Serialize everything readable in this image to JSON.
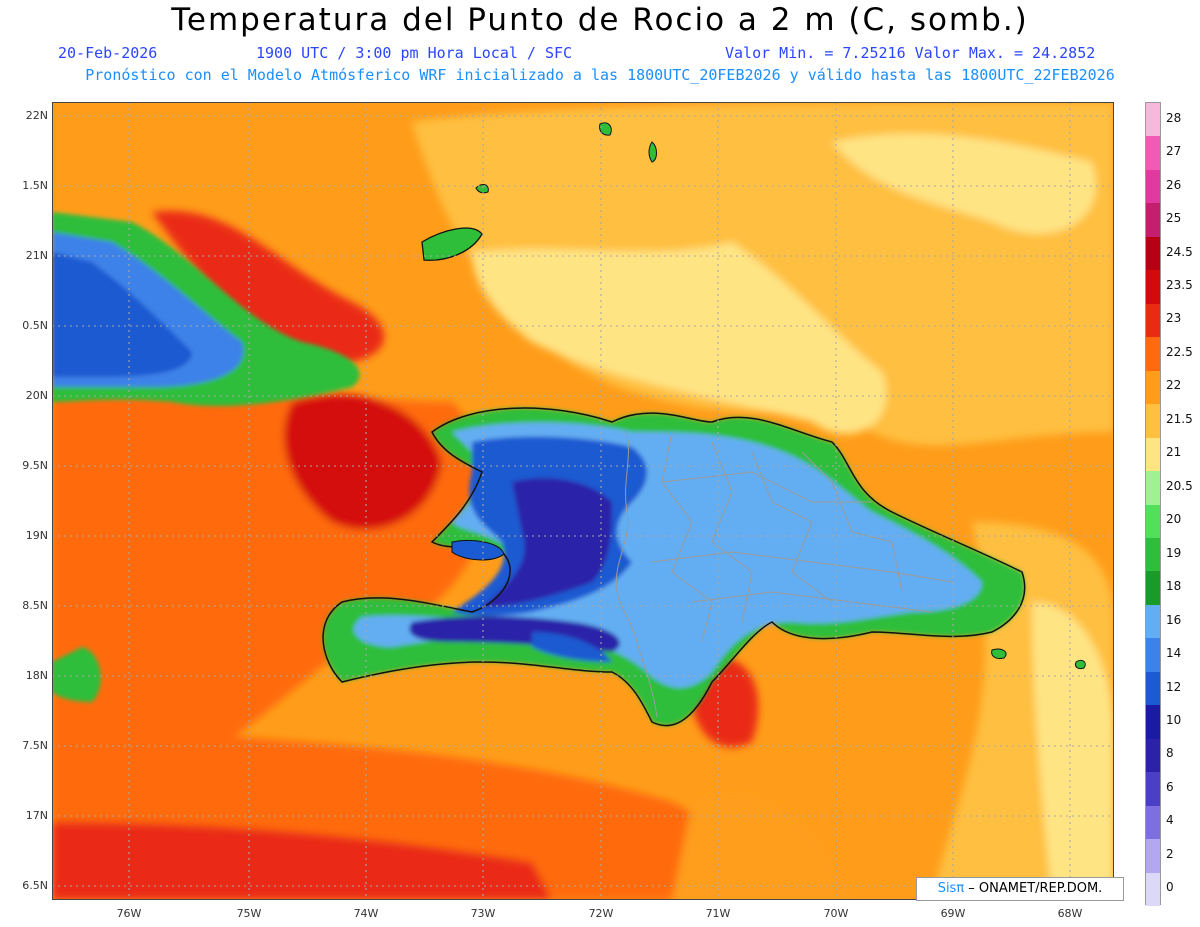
{
  "title": "Temperatura del Punto de Rocio a 2 m (C, somb.)",
  "subtitle": {
    "date": "20-Feb-2026",
    "time": "1900 UTC / 3:00 pm Hora Local / SFC",
    "minmax": "Valor Min. = 7.25216  Valor Max. = 24.2852"
  },
  "forecast_line": "Pronóstico con el Modelo Atmósferico WRF inicializado a las 1800UTC_20FEB2026 y válido hasta las  1800UTC_22FEB2026",
  "lat_labels": [
    "22N",
    "1.5N",
    "21N",
    "0.5N",
    "20N",
    "9.5N",
    "19N",
    "8.5N",
    "18N",
    "7.5N",
    "17N",
    "6.5N"
  ],
  "lon_labels": [
    "76W",
    "75W",
    "74W",
    "73W",
    "72W",
    "71W",
    "70W",
    "69W",
    "68W"
  ],
  "colorbar": {
    "labels": [
      "28",
      "27",
      "26",
      "25",
      "24.5",
      "23.5",
      "23",
      "22.5",
      "22",
      "21.5",
      "21",
      "20.5",
      "20",
      "19",
      "18",
      "16",
      "14",
      "12",
      "10",
      "8",
      "6",
      "4",
      "2",
      "0"
    ],
    "colors": [
      "#f7b8dc",
      "#f15bb5",
      "#e03aa0",
      "#c41e6e",
      "#b80014",
      "#d40a0a",
      "#ea2a12",
      "#ff6a10",
      "#ff9d1a",
      "#ffbf40",
      "#ffe484",
      "#9ef28f",
      "#52e05a",
      "#2fbe3a",
      "#1a9a26",
      "#63aef2",
      "#3d82e8",
      "#1a5ad2",
      "#1a1aa3",
      "#2b22a8",
      "#4b3fc6",
      "#7d6fe0",
      "#b3a6f2",
      "#dcd9f8"
    ]
  },
  "credit": {
    "brand": "Sisπ",
    "text": " – ONAMET/REP.DOM."
  }
}
